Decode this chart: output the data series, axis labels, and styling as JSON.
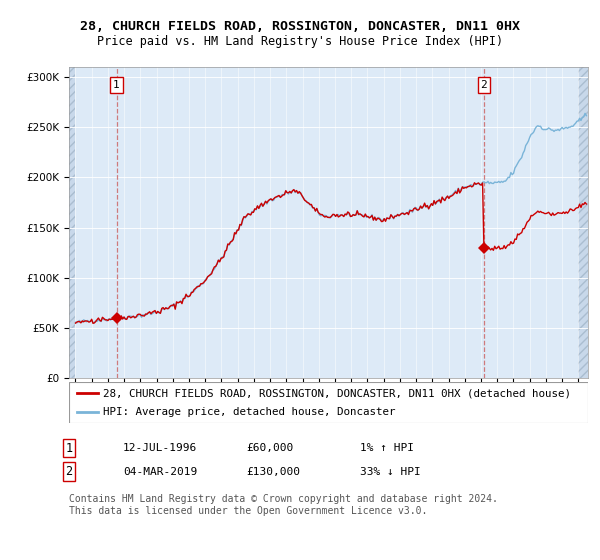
{
  "title_line1": "28, CHURCH FIELDS ROAD, ROSSINGTON, DONCASTER, DN11 0HX",
  "title_line2": "Price paid vs. HM Land Registry's House Price Index (HPI)",
  "ytick_values": [
    0,
    50000,
    100000,
    150000,
    200000,
    250000,
    300000
  ],
  "ylim": [
    0,
    310000
  ],
  "xlim_start": 1993.6,
  "xlim_end": 2025.6,
  "sale1_date": 1996.53,
  "sale1_price": 60000,
  "sale2_date": 2019.17,
  "sale2_price": 130000,
  "hpi_color": "#7ab4d8",
  "price_color": "#cc0000",
  "bg_plot_color": "#ddeaf7",
  "bg_hatch_color": "#c8d8ea",
  "grid_color": "#c8d8ea",
  "vline_color": "#cc6666",
  "legend_label_price": "28, CHURCH FIELDS ROAD, ROSSINGTON, DONCASTER, DN11 0HX (detached house)",
  "legend_label_hpi": "HPI: Average price, detached house, Doncaster",
  "annotation1_date": "12-JUL-1996",
  "annotation1_price": "£60,000",
  "annotation1_hpi": "1% ↑ HPI",
  "annotation2_date": "04-MAR-2019",
  "annotation2_price": "£130,000",
  "annotation2_hpi": "33% ↓ HPI",
  "footer_text": "Contains HM Land Registry data © Crown copyright and database right 2024.\nThis data is licensed under the Open Government Licence v3.0.",
  "title_fontsize": 9.5,
  "subtitle_fontsize": 8.5,
  "tick_fontsize": 7.5,
  "legend_fontsize": 7.8,
  "annotation_fontsize": 8
}
